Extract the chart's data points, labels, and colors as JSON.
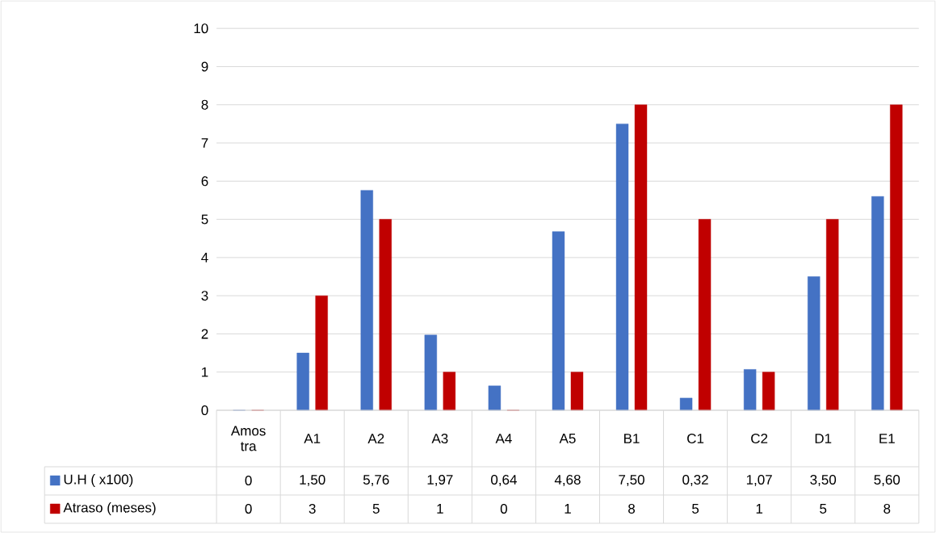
{
  "chart_data": {
    "type": "bar",
    "categories": [
      "Amos tra",
      "A1",
      "A2",
      "A3",
      "A4",
      "A5",
      "B1",
      "C1",
      "C2",
      "D1",
      "E1"
    ],
    "series": [
      {
        "name": "U.H ( x100)",
        "color": "#4472c4",
        "values": [
          0,
          1.5,
          5.76,
          1.97,
          0.64,
          4.68,
          7.5,
          0.32,
          1.07,
          3.5,
          5.6
        ],
        "value_labels": [
          "0",
          "1,50",
          "5,76",
          "1,97",
          "0,64",
          "4,68",
          "7,50",
          "0,32",
          "1,07",
          "3,50",
          "5,60"
        ]
      },
      {
        "name": "Atraso (meses)",
        "color": "#c00000",
        "values": [
          0,
          3,
          5,
          1,
          0,
          1,
          8,
          5,
          1,
          5,
          8
        ],
        "value_labels": [
          "0",
          "3",
          "5",
          "1",
          "0",
          "1",
          "8",
          "5",
          "1",
          "5",
          "8"
        ]
      }
    ],
    "ylim": [
      0,
      10
    ],
    "yticks": [
      0,
      1,
      2,
      3,
      4,
      5,
      6,
      7,
      8,
      9,
      10
    ],
    "grid": true,
    "legend": "bottom left"
  }
}
